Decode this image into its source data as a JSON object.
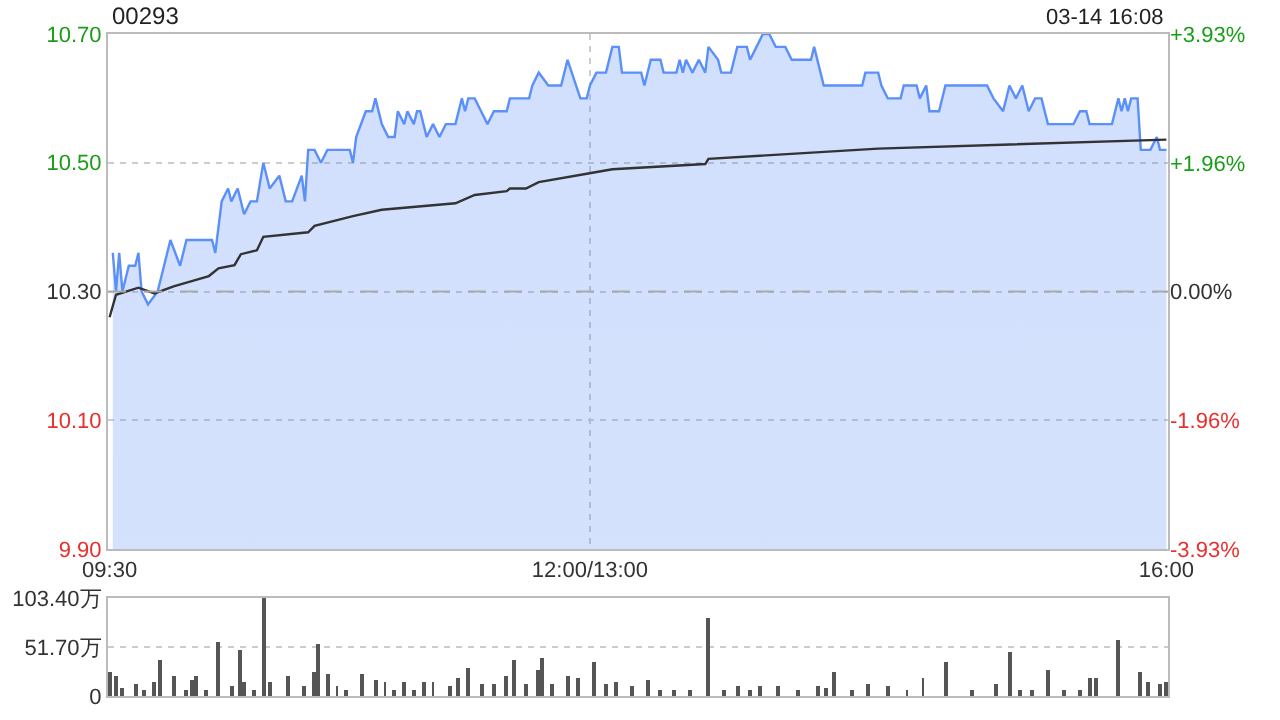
{
  "chart_data": [
    {
      "type": "area",
      "title": "00293",
      "annotations": [
        "03-14 16:08"
      ],
      "categories": [
        "09:30",
        null,
        null,
        null,
        null,
        null,
        null,
        null,
        null,
        null,
        null,
        null,
        null,
        null,
        null,
        null,
        null,
        null,
        null,
        null,
        null,
        null,
        null,
        null,
        null,
        null,
        null,
        null,
        null,
        null,
        null,
        null,
        null,
        null,
        null,
        null,
        null,
        null,
        null,
        null,
        null,
        null,
        null,
        null,
        null,
        null,
        null,
        null,
        null,
        null,
        null,
        null,
        null,
        null,
        null,
        null,
        null,
        null,
        null,
        null,
        null,
        null,
        null,
        null,
        null,
        null,
        null,
        null,
        null,
        null,
        null,
        null,
        null,
        null,
        null,
        null,
        null,
        null,
        null,
        null,
        null,
        null,
        null,
        null,
        null,
        null,
        null,
        null,
        null,
        null,
        null,
        null,
        null,
        null,
        null,
        null,
        null,
        null,
        null,
        null,
        null,
        null,
        null,
        null,
        null,
        null,
        null,
        null,
        null,
        null,
        null,
        null,
        null,
        null,
        null,
        null,
        null,
        null,
        null,
        null,
        null,
        null,
        null,
        null,
        null,
        null,
        null,
        null,
        null,
        null,
        null,
        null,
        null,
        null,
        null,
        null,
        null,
        null,
        null,
        null,
        null,
        null,
        null,
        null,
        null,
        null,
        null,
        null,
        null,
        null,
        "12:00/13:00",
        null,
        null,
        null,
        null,
        null,
        null,
        null,
        null,
        null,
        null,
        null,
        null,
        null,
        null,
        null,
        null,
        null,
        null,
        null,
        null,
        null,
        null,
        null,
        null,
        null,
        null,
        null,
        null,
        null,
        null,
        null,
        null,
        null,
        null,
        null,
        null,
        null,
        null,
        null,
        null,
        null,
        null,
        null,
        null,
        null,
        null,
        null,
        null,
        null,
        null,
        null,
        null,
        null,
        null,
        null,
        null,
        null,
        null,
        null,
        null,
        null,
        null,
        null,
        null,
        null,
        null,
        null,
        null,
        null,
        null,
        null,
        null,
        null,
        null,
        null,
        null,
        null,
        null,
        null,
        null,
        null,
        null,
        null,
        null,
        null,
        null,
        null,
        null,
        null,
        null,
        null,
        null,
        null,
        null,
        null,
        null,
        null,
        null,
        null,
        null,
        null,
        null,
        null,
        null,
        null,
        null,
        null,
        null,
        null,
        null,
        null,
        null,
        null,
        null,
        null,
        null,
        null,
        null,
        null,
        null,
        null,
        null,
        null,
        null,
        null,
        null,
        null,
        null,
        null,
        null,
        null,
        null,
        null,
        null,
        null,
        null,
        null,
        null,
        null,
        null,
        null,
        null,
        null,
        null,
        null,
        null,
        null,
        null,
        null,
        null,
        null,
        null,
        null,
        null,
        null,
        null,
        null,
        null,
        null,
        null,
        null,
        null,
        null,
        null,
        null,
        null,
        null,
        null,
        null,
        null,
        null,
        null,
        null,
        null,
        null,
        null,
        null,
        null,
        null,
        "16:00"
      ],
      "ylim": [
        9.9,
        10.7
      ],
      "yticks": [
        {
          "value": 9.9,
          "label": "9.90"
        },
        {
          "value": 10.1,
          "label": "10.10"
        },
        {
          "value": 10.3,
          "label": "10.30"
        },
        {
          "value": 10.5,
          "label": "10.50"
        },
        {
          "value": 10.7,
          "label": "10.70"
        }
      ],
      "y2lim": [
        -3.93,
        3.93
      ],
      "y2ticks": [
        {
          "value": -3.93,
          "label": "-3.93%"
        },
        {
          "value": -1.96,
          "label": "-1.96%"
        },
        {
          "value": 0,
          "label": "0.00%"
        },
        {
          "value": 1.96,
          "label": "+1.96%"
        },
        {
          "value": 3.93,
          "label": "+3.93%"
        }
      ],
      "grid": true,
      "marker": "none",
      "ref_lines": [
        {
          "axis": "y",
          "value": 10.3,
          "label": null,
          "color": "#aaaaaa",
          "line_style": "dashed"
        }
      ],
      "series": [
        {
          "type": "area",
          "color": "#5b8ff9",
          "values": [
            null,
            10.36,
            10.3,
            10.36,
            10.3,
            null,
            10.34,
            null,
            10.34,
            10.36,
            10.3,
            null,
            10.28,
            null,
            null,
            10.3,
            null,
            10.34,
            null,
            10.38,
            null,
            null,
            10.34,
            null,
            10.38,
            null,
            null,
            null,
            null,
            null,
            null,
            null,
            10.38,
            10.36,
            null,
            10.44,
            null,
            10.46,
            10.44,
            null,
            10.46,
            null,
            10.42,
            null,
            10.44,
            null,
            10.44,
            null,
            10.5,
            null,
            10.46,
            null,
            null,
            10.48,
            null,
            10.44,
            null,
            10.44,
            null,
            null,
            10.48,
            10.44,
            10.52,
            null,
            10.52,
            null,
            10.5,
            null,
            10.52,
            null,
            null,
            null,
            null,
            null,
            null,
            10.52,
            10.5,
            10.54,
            null,
            null,
            10.58,
            null,
            10.58,
            10.6,
            null,
            10.56,
            null,
            10.54,
            null,
            10.54,
            10.58,
            null,
            10.56,
            10.58,
            null,
            10.56,
            10.58,
            10.58,
            null,
            10.54,
            null,
            10.56,
            null,
            10.54,
            null,
            10.56,
            null,
            null,
            10.56,
            null,
            10.6,
            10.58,
            10.6,
            null,
            10.6,
            null,
            10.58,
            null,
            10.56,
            null,
            10.58,
            null,
            null,
            null,
            10.58,
            10.6,
            null,
            null,
            null,
            null,
            null,
            10.6,
            10.62,
            null,
            10.64,
            null,
            null,
            10.62,
            null,
            null,
            null,
            10.62,
            null,
            10.66,
            null,
            null,
            null,
            10.6,
            null,
            10.6,
            10.62,
            null,
            10.64,
            null,
            null,
            10.64,
            null,
            10.68,
            null,
            10.68,
            10.64,
            null,
            null,
            null,
            null,
            null,
            10.64,
            10.62,
            null,
            10.66,
            null,
            null,
            10.66,
            10.64,
            null,
            null,
            null,
            10.64,
            10.66,
            10.64,
            10.66,
            null,
            10.64,
            null,
            10.66,
            null,
            10.64,
            10.68,
            null,
            null,
            10.66,
            10.64,
            null,
            null,
            10.64,
            null,
            10.68,
            null,
            null,
            10.68,
            10.66,
            null,
            10.68,
            null,
            10.7,
            null,
            10.7,
            null,
            10.68,
            null,
            null,
            10.68,
            null,
            10.66,
            null,
            null,
            null,
            null,
            null,
            10.66,
            10.68,
            null,
            null,
            10.62,
            null,
            null,
            null,
            null,
            null,
            null,
            null,
            null,
            null,
            null,
            null,
            10.62,
            10.64,
            null,
            null,
            null,
            10.64,
            10.62,
            null,
            10.6,
            null,
            null,
            null,
            10.6,
            10.62,
            null,
            null,
            null,
            10.62,
            10.6,
            null,
            10.62,
            10.58,
            null,
            null,
            10.58,
            null,
            10.62,
            null,
            null,
            null,
            null,
            null,
            null,
            null,
            null,
            null,
            null,
            null,
            null,
            10.62,
            null,
            10.6,
            null,
            null,
            10.58,
            null,
            10.62,
            null,
            10.6,
            null,
            10.62,
            null,
            10.58,
            null,
            10.6,
            null,
            10.6,
            null,
            10.56,
            null,
            null,
            null,
            null,
            null,
            null,
            null,
            10.56,
            null,
            10.58,
            null,
            10.58,
            10.56,
            null,
            null,
            null,
            null,
            null,
            null,
            10.56,
            null,
            10.6,
            10.58,
            10.6,
            10.58,
            10.6,
            null,
            10.6,
            10.52,
            null,
            null,
            10.52,
            null,
            10.54,
            10.52,
            null,
            10.52
          ]
        },
        {
          "type": "line",
          "color": "#333333",
          "values": [
            10.26,
            null,
            10.295,
            null,
            null,
            null,
            null,
            null,
            null,
            10.306,
            null,
            null,
            null,
            null,
            10.297,
            null,
            null,
            null,
            null,
            null,
            10.308,
            null,
            null,
            null,
            null,
            null,
            null,
            10.318,
            null,
            null,
            null,
            10.324,
            null,
            null,
            10.336,
            null,
            null,
            null,
            null,
            10.341,
            null,
            10.358,
            null,
            null,
            null,
            null,
            10.364,
            null,
            10.385,
            null,
            null,
            null,
            null,
            null,
            null,
            null,
            null,
            null,
            null,
            null,
            null,
            null,
            10.392,
            null,
            10.402,
            null,
            null,
            null,
            null,
            null,
            null,
            null,
            null,
            null,
            null,
            null,
            10.417,
            null,
            null,
            null,
            null,
            null,
            null,
            null,
            null,
            10.427,
            null,
            null,
            null,
            null,
            null,
            null,
            null,
            null,
            null,
            null,
            null,
            null,
            null,
            null,
            null,
            null,
            null,
            null,
            null,
            null,
            null,
            null,
            10.437,
            null,
            null,
            null,
            null,
            null,
            10.45,
            null,
            null,
            null,
            null,
            null,
            null,
            null,
            null,
            null,
            10.456,
            10.46,
            null,
            null,
            null,
            null,
            10.46,
            null,
            null,
            null,
            10.47,
            null,
            null,
            null,
            null,
            null,
            null,
            null,
            null,
            null,
            null,
            null,
            null,
            null,
            null,
            10.483,
            null,
            null,
            null,
            null,
            null,
            null,
            null,
            10.49,
            null,
            null,
            null,
            null,
            null,
            null,
            null,
            null,
            null,
            null,
            null,
            null,
            null,
            null,
            null,
            null,
            null,
            null,
            null,
            null,
            null,
            null,
            null,
            null,
            null,
            null,
            null,
            null,
            10.498,
            10.506,
            null,
            null,
            null,
            null,
            null,
            null,
            null,
            null,
            null,
            null,
            null,
            null,
            null,
            null,
            null,
            null,
            null,
            null,
            null,
            null,
            null,
            null,
            null,
            null,
            null,
            null,
            null,
            null,
            null,
            null,
            null,
            null,
            null,
            null,
            null,
            null,
            null,
            null,
            null,
            null,
            null,
            null,
            null,
            null,
            null,
            null,
            null,
            null,
            null,
            null,
            null,
            null,
            10.522,
            null,
            null,
            null,
            null,
            null,
            null,
            null,
            null,
            null,
            null,
            null,
            null,
            null,
            null,
            null,
            null,
            null,
            null,
            null,
            null,
            null,
            null,
            null,
            null,
            null,
            null,
            null,
            null,
            null,
            null,
            null,
            null,
            null,
            null,
            null,
            null,
            null,
            null,
            null,
            null,
            null,
            null,
            null,
            null,
            null,
            null,
            null,
            null,
            null,
            null,
            null,
            null,
            null,
            null,
            null,
            null,
            null,
            null,
            null,
            null,
            null,
            null,
            null,
            null,
            null,
            null,
            null,
            null,
            null,
            null,
            null,
            null,
            null,
            null,
            null,
            null,
            null,
            null,
            null,
            null,
            null,
            null,
            null,
            null,
            null,
            null,
            null,
            null,
            null,
            10.536
          ]
        }
      ]
    },
    {
      "type": "bar",
      "tick_labels": "y",
      "grid": "y",
      "categories": [
        null,
        null,
        null,
        null,
        null,
        null,
        null,
        null,
        null,
        null,
        null,
        null,
        null,
        null,
        null,
        null,
        null,
        null,
        null,
        null,
        null,
        null,
        null,
        null,
        null,
        null,
        null,
        null,
        null,
        null,
        null,
        null,
        null,
        null,
        null,
        null,
        null,
        null,
        null,
        null,
        null,
        null,
        null,
        null,
        null,
        null,
        null,
        null,
        null,
        null,
        null,
        null,
        null,
        null,
        null,
        null,
        null,
        null,
        null,
        null,
        null,
        null,
        null,
        null,
        null,
        null,
        null,
        null,
        null,
        null,
        null,
        null,
        null,
        null,
        null,
        null,
        null,
        null,
        null,
        null,
        null,
        null,
        null,
        null,
        null,
        null,
        null,
        null,
        null,
        null,
        null,
        null,
        null,
        null,
        null,
        null,
        null,
        null,
        null,
        null,
        null,
        null,
        null,
        null,
        null,
        null,
        null,
        null,
        null,
        null,
        null,
        null,
        null,
        null,
        null,
        null,
        null,
        null,
        null,
        null,
        null,
        null,
        null,
        null,
        null,
        null,
        null,
        null,
        null,
        null,
        null,
        null,
        null,
        null,
        null,
        null,
        null,
        null,
        null,
        null,
        null,
        null,
        null,
        null,
        null,
        null,
        null,
        null,
        null,
        null,
        null,
        null,
        null,
        null,
        null,
        null,
        null,
        null,
        null,
        null,
        null,
        null,
        null,
        null,
        null,
        null,
        null,
        null,
        null,
        null,
        null,
        null,
        null,
        null,
        null,
        null,
        null,
        null,
        null,
        null,
        null,
        null,
        null,
        null,
        null,
        null,
        null,
        null,
        null,
        null,
        null,
        null,
        null,
        null,
        null,
        null,
        null,
        null,
        null,
        null,
        null,
        null,
        null,
        null,
        null,
        null,
        null,
        null,
        null,
        null,
        null,
        null,
        null,
        null,
        null,
        null,
        null,
        null,
        null,
        null,
        null,
        null,
        null,
        null,
        null,
        null,
        null,
        null,
        null,
        null,
        null,
        null,
        null,
        null,
        null,
        null,
        null,
        null,
        null,
        null,
        null,
        null,
        null,
        null,
        null,
        null,
        null,
        null,
        null,
        null,
        null,
        null,
        null,
        null,
        null,
        null,
        null,
        null,
        null,
        null,
        null,
        null,
        null,
        null,
        null,
        null,
        null,
        null,
        null,
        null,
        null,
        null,
        null,
        null,
        null,
        null,
        null,
        null,
        null,
        null,
        null,
        null,
        null,
        null,
        null,
        null,
        null,
        null,
        null,
        null,
        null,
        null,
        null,
        null,
        null,
        null,
        null,
        null,
        null,
        null,
        null,
        null,
        null,
        null,
        null,
        null,
        null,
        null,
        null,
        null,
        null,
        null,
        null,
        null,
        null,
        null,
        null,
        null,
        null,
        null,
        null,
        null,
        null,
        null,
        null,
        null,
        null,
        null,
        null,
        null,
        null
      ],
      "ylim": [
        0,
        103.4
      ],
      "yticks": [
        0,
        {
          "value": 51.7,
          "label": "51.70万"
        },
        {
          "value": 103.4,
          "label": "103.40万"
        }
      ],
      "series": [
        {
          "color": "#555555",
          "values": [
            26,
            null,
            21,
            null,
            8,
            null,
            null,
            null,
            12,
            null,
            null,
            7,
            null,
            null,
            14,
            null,
            38,
            null,
            null,
            null,
            21,
            null,
            null,
            null,
            7,
            null,
            16,
            21,
            null,
            null,
            6,
            null,
            null,
            null,
            57,
            null,
            null,
            null,
            10,
            null,
            null,
            48,
            14,
            null,
            null,
            7,
            null,
            null,
            103,
            null,
            14,
            null,
            null,
            null,
            null,
            null,
            21,
            null,
            null,
            null,
            null,
            10,
            null,
            null,
            26,
            54,
            null,
            null,
            24,
            null,
            null,
            10,
            null,
            null,
            6,
            null,
            null,
            null,
            null,
            23,
            null,
            null,
            null,
            17,
            null,
            null,
            14,
            null,
            null,
            6,
            null,
            null,
            14,
            null,
            null,
            6,
            null,
            null,
            14,
            null,
            null,
            14,
            null,
            null,
            null,
            null,
            10,
            null,
            null,
            19,
            null,
            null,
            30,
            null,
            null,
            null,
            12,
            null,
            null,
            null,
            12,
            null,
            null,
            null,
            21,
            null,
            39,
            null,
            null,
            null,
            12,
            null,
            null,
            null,
            28,
            41,
            null,
            null,
            12,
            null,
            null,
            null,
            null,
            21,
            null,
            null,
            19,
            null,
            null,
            null,
            null,
            35,
            null,
            null,
            null,
            12,
            null,
            null,
            14,
            null,
            null,
            null,
            null,
            10,
            null,
            null,
            null,
            null,
            16,
            null,
            null,
            null,
            6,
            null,
            null,
            null,
            7,
            null,
            null,
            null,
            null,
            6,
            null,
            null,
            null,
            null,
            null,
            83,
            null,
            null,
            null,
            null,
            6,
            null,
            null,
            null,
            10,
            null,
            null,
            null,
            6,
            null,
            null,
            10,
            null,
            null,
            null,
            null,
            null,
            10,
            null,
            null,
            null,
            null,
            null,
            6,
            null,
            null,
            null,
            null,
            null,
            10,
            null,
            null,
            8,
            null,
            26,
            null,
            null,
            null,
            null,
            null,
            6,
            null,
            null,
            null,
            null,
            12,
            null,
            null,
            null,
            null,
            null,
            10,
            null,
            null,
            null,
            null,
            null,
            6,
            null,
            null,
            null,
            null,
            19,
            null,
            null,
            null,
            null,
            null,
            null,
            35,
            null,
            null,
            null,
            null,
            null,
            null,
            null,
            6,
            null,
            null,
            null,
            null,
            null,
            null,
            null,
            12,
            null,
            null,
            null,
            46,
            null,
            null,
            7,
            null,
            null,
            null,
            6,
            null,
            null,
            null,
            null,
            28,
            null,
            null,
            null,
            null,
            6,
            null,
            null,
            null,
            null,
            7,
            null,
            null,
            19,
            null,
            19,
            null,
            null,
            null,
            null,
            null,
            null,
            60,
            null,
            null,
            null,
            null,
            null,
            null,
            26,
            null,
            14,
            null,
            null,
            null,
            12,
            null,
            14
          ]
        }
      ]
    }
  ]
}
